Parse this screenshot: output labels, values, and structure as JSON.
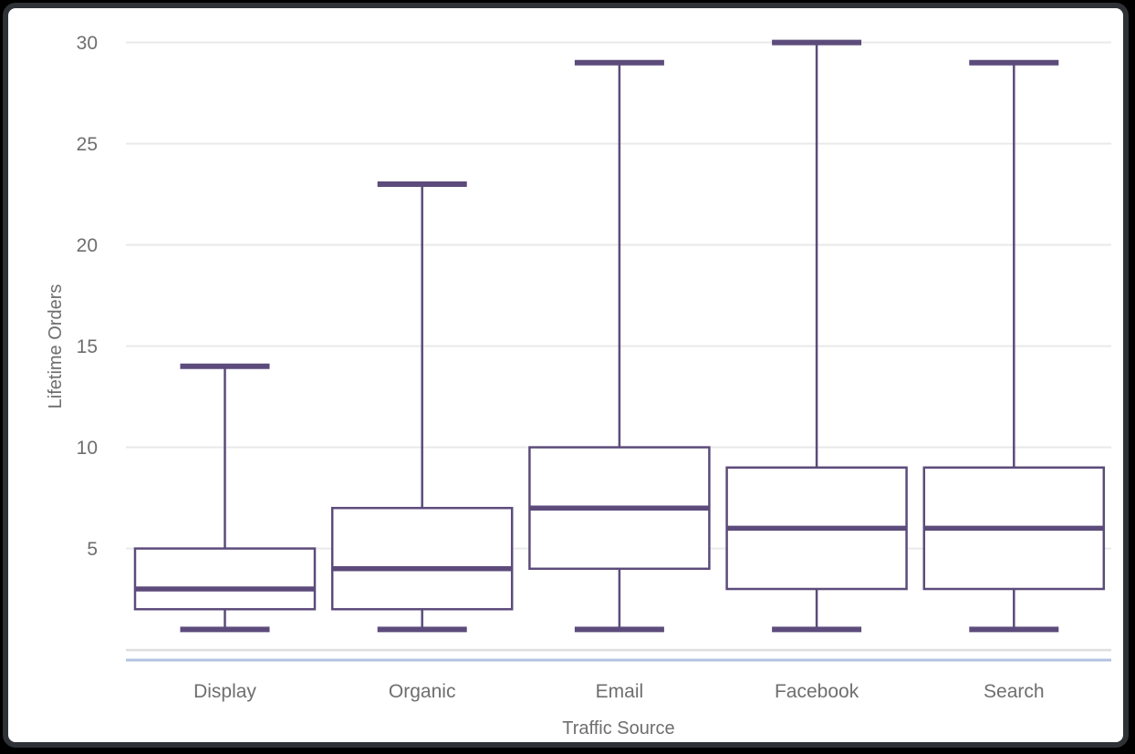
{
  "chart_data": {
    "type": "boxplot",
    "title": "",
    "xlabel": "Traffic Source",
    "ylabel": "Lifetime Orders",
    "categories": [
      "Display",
      "Organic",
      "Email",
      "Facebook",
      "Search"
    ],
    "series": [
      {
        "name": "Display",
        "min": 1,
        "q1": 2,
        "median": 3,
        "q3": 5,
        "max": 14
      },
      {
        "name": "Organic",
        "min": 1,
        "q1": 2,
        "median": 4,
        "q3": 7,
        "max": 23
      },
      {
        "name": "Email",
        "min": 1,
        "q1": 4,
        "median": 7,
        "q3": 10,
        "max": 29
      },
      {
        "name": "Facebook",
        "min": 1,
        "q1": 3,
        "median": 6,
        "q3": 9,
        "max": 30
      },
      {
        "name": "Search",
        "min": 1,
        "q1": 3,
        "median": 6,
        "q3": 9,
        "max": 29
      }
    ],
    "ylim": [
      0,
      30
    ],
    "yticks": [
      5,
      10,
      15,
      20,
      25,
      30
    ],
    "grid": true,
    "legend": "none",
    "colors": {
      "box_stroke": "#5C4B7B",
      "box_fill": "#FFFFFF",
      "gridline": "#E9E9E9",
      "zero_axis_line": "#DEDEDE",
      "bottom_accent_line": "#B3C2E0",
      "label_text": "#6E6E6E",
      "frame_border": "#2E3236",
      "chart_background": "#FFFFFF",
      "page_background": "#000000"
    }
  }
}
